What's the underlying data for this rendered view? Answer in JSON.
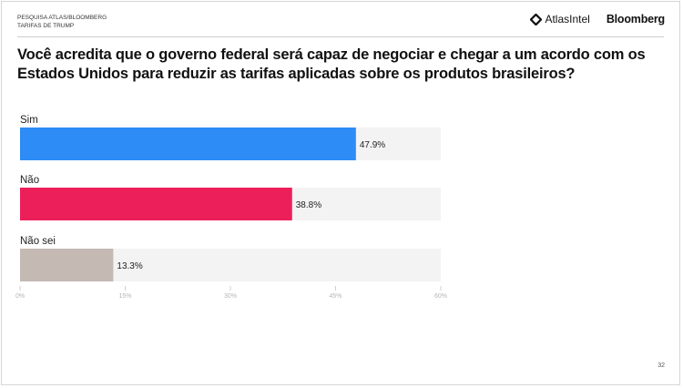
{
  "header": {
    "kicker_line1": "PESQUISA ATLAS/BLOOMBERG",
    "kicker_line2": "TARIFAS DE TRUMP",
    "logo_atlas": "AtlasIntel",
    "logo_bloomberg": "Bloomberg"
  },
  "page_number": "32",
  "chart_data": {
    "type": "bar",
    "orientation": "horizontal",
    "title": "Você acredita que o governo federal será capaz de negociar e chegar a um acordo com os Estados Unidos para reduzir as tarifas aplicadas sobre os produtos brasileiros?",
    "categories": [
      "Sim",
      "Não",
      "Não sei"
    ],
    "values": [
      47.9,
      38.8,
      13.3
    ],
    "value_labels": [
      "47.9%",
      "38.8%",
      "13.3%"
    ],
    "colors": [
      "#2d8cf5",
      "#ec1f5b",
      "#c5b9b3"
    ],
    "track_color": "#f3f3f3",
    "xlim": [
      0,
      60
    ],
    "xticks": [
      0,
      15,
      30,
      45,
      60
    ],
    "xtick_labels": [
      "0%",
      "15%",
      "30%",
      "45%",
      "60%"
    ],
    "xlabel": "",
    "ylabel": "",
    "grid": false
  }
}
